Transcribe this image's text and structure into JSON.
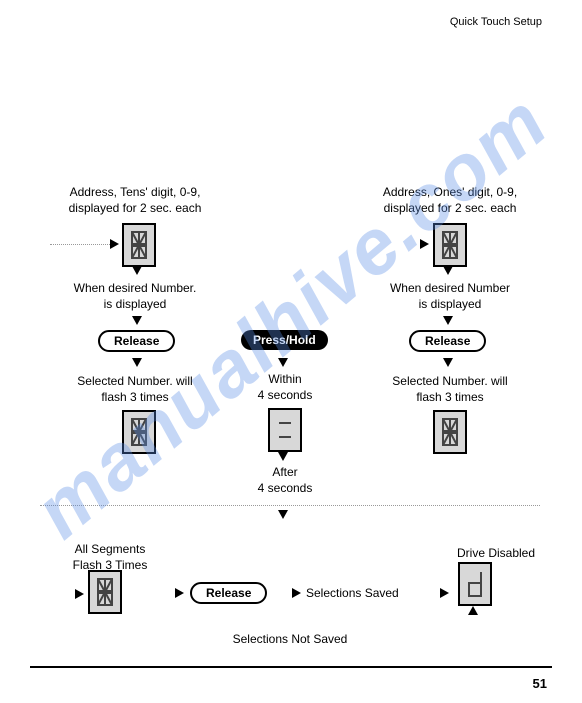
{
  "header": "Quick Touch Setup",
  "left": {
    "l1": "Address, Tens' digit, 0-9,\ndisplayed for 2 sec. each",
    "l2": "When desired Number.\nis displayed",
    "release": "Release",
    "l3": "Selected Number. will\nflash 3 times",
    "l4": "All Segments\nFlash 3 Times"
  },
  "right": {
    "l1": "Address, Ones' digit, 0-9,\ndisplayed for 2 sec. each",
    "l2": "When desired Number\nis displayed",
    "release": "Release",
    "l3": "Selected Number. will\nflash 3 times",
    "l4": "Drive Disabled"
  },
  "center": {
    "press": "Press/Hold",
    "within": "Within\n4 seconds",
    "after": "After\n4 seconds",
    "release": "Release",
    "saved": "Selections Saved",
    "notsaved": "Selections Not Saved"
  },
  "pageNumber": "51"
}
